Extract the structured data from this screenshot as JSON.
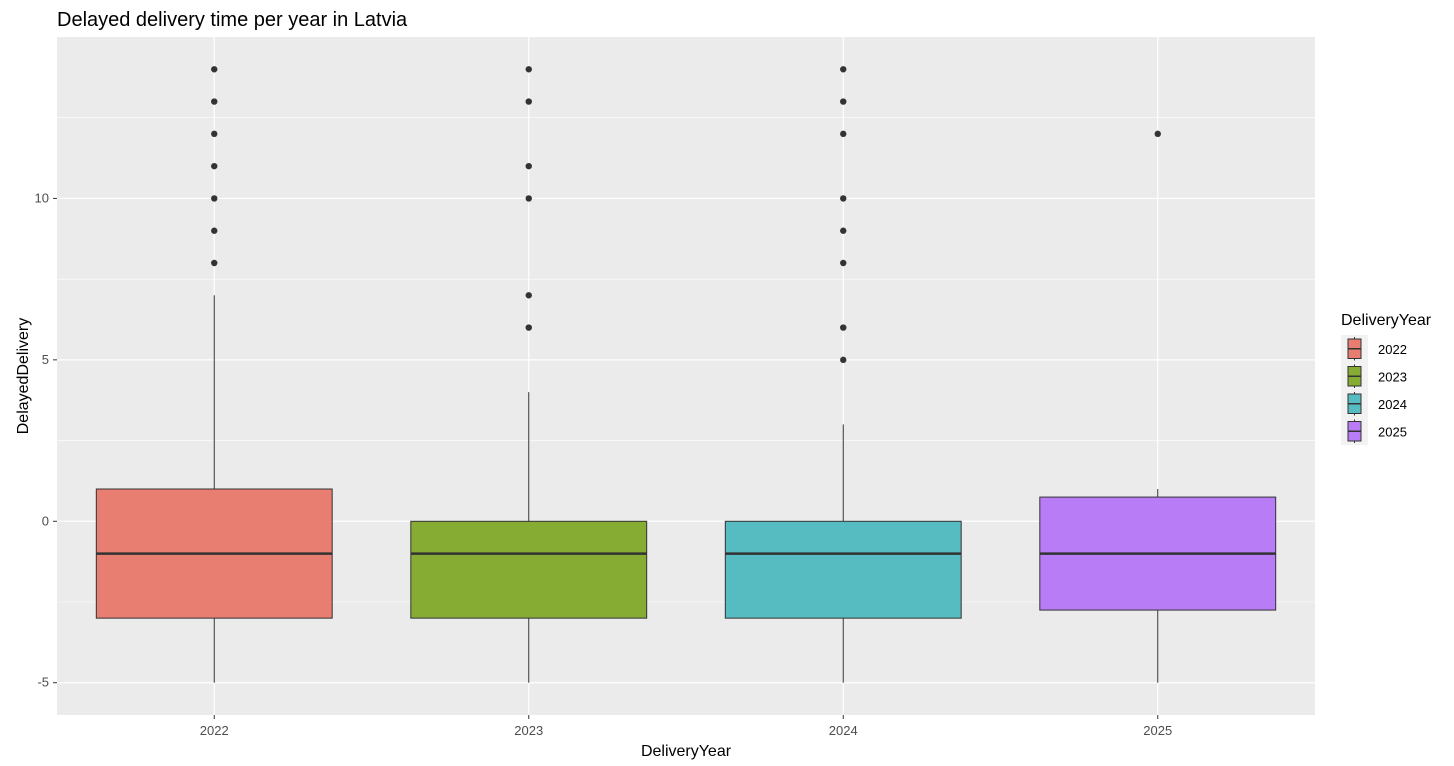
{
  "chart_data": {
    "type": "box",
    "title": "Delayed delivery time per year in Latvia",
    "xlabel": "DeliveryYear",
    "ylabel": "DelayedDelivery",
    "ylim": [
      -6,
      15
    ],
    "yticks": [
      -5,
      0,
      5,
      10
    ],
    "categories": [
      "2022",
      "2023",
      "2024",
      "2025"
    ],
    "colors": [
      "#E87D72",
      "#87AC34",
      "#56BCC2",
      "#B77CF6"
    ],
    "boxes": [
      {
        "name": "2022",
        "whisker_low": -5,
        "q1": -3,
        "median": -1,
        "q3": 1,
        "whisker_high": 7,
        "outliers": [
          8,
          9,
          10,
          11,
          12,
          13,
          14
        ]
      },
      {
        "name": "2023",
        "whisker_low": -5,
        "q1": -3,
        "median": -1,
        "q3": 0,
        "whisker_high": 4,
        "outliers": [
          6,
          7,
          10,
          11,
          13,
          14
        ]
      },
      {
        "name": "2024",
        "whisker_low": -5,
        "q1": -3,
        "median": -1,
        "q3": 0,
        "whisker_high": 3,
        "outliers": [
          5,
          6,
          8,
          9,
          10,
          12,
          13,
          14
        ]
      },
      {
        "name": "2025",
        "whisker_low": -5,
        "q1": -2.75,
        "median": -1,
        "q3": 0.75,
        "whisker_high": 1,
        "outliers": [
          12
        ]
      }
    ],
    "grid": true,
    "legend": {
      "title": "DeliveryYear",
      "placement": "right",
      "entries": [
        "2022",
        "2023",
        "2024",
        "2025"
      ]
    }
  }
}
